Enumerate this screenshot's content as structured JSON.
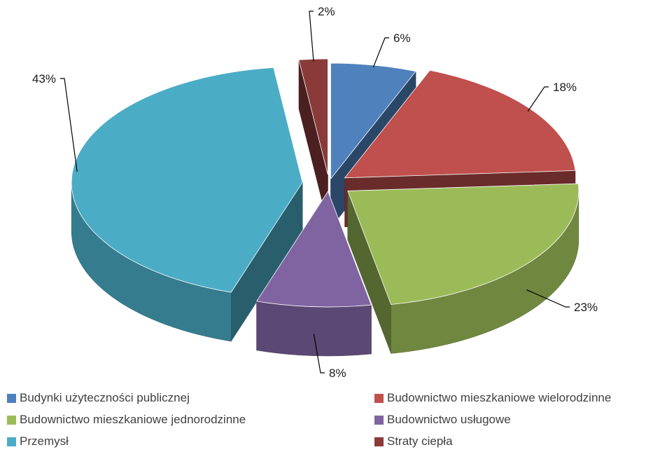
{
  "chart_data": {
    "type": "pie",
    "categories": [
      "Budynki użyteczności publicznej",
      "Budownictwo mieszkaniowe wielorodzinne",
      "Budownictwo mieszkaniowe jednorodzinne",
      "Budownictwo usługowe",
      "Przemysł",
      "Straty ciepła"
    ],
    "values": [
      6,
      18,
      23,
      8,
      43,
      2
    ],
    "data_labels": [
      "6%",
      "18%",
      "23%",
      "8%",
      "43%",
      "2%"
    ],
    "colors": [
      "#4F81BD",
      "#C0504D",
      "#9BBB59",
      "#8064A2",
      "#4BACC6",
      "#8B3A3A"
    ],
    "exploded": true,
    "three_d": true,
    "legend_position": "bottom"
  }
}
